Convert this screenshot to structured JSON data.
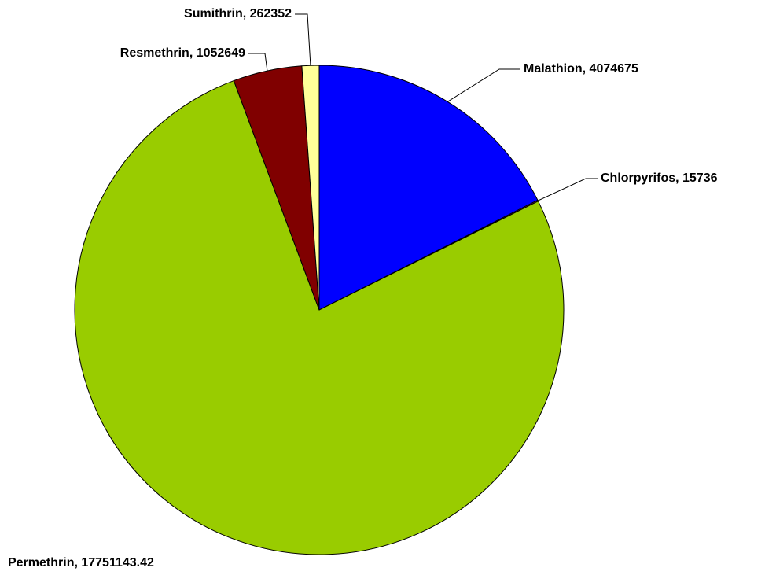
{
  "chart_data": {
    "type": "pie",
    "values": [
      4074675,
      15736,
      17751143.42,
      1052649,
      262352
    ],
    "value_labels": [
      "Malathion, 4074675",
      "Chlorpyrifos, 15736",
      "Permethrin, 17751143.42",
      "Resmethrin, 1052649",
      "Sumithrin, 262352"
    ],
    "colors": [
      "#0000ff",
      "#993366",
      "#99cc00",
      "#800000",
      "#ffff99"
    ]
  }
}
